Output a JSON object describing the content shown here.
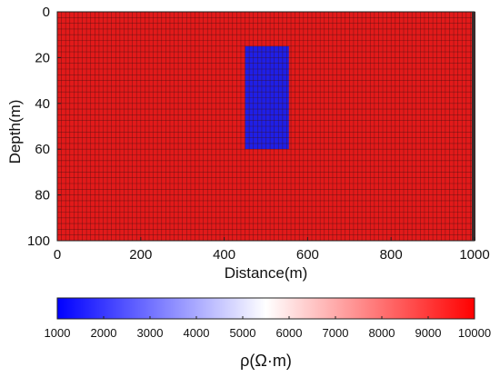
{
  "chart_data": {
    "type": "heatmap",
    "title": "",
    "xlabel": "Distance(m)",
    "ylabel": "Depth(m)",
    "xlim": [
      0,
      1000
    ],
    "ylim": [
      100,
      0
    ],
    "x_ticks": [
      0,
      200,
      400,
      600,
      800,
      1000
    ],
    "y_ticks": [
      0,
      20,
      40,
      60,
      80,
      100
    ],
    "grid": true,
    "y_axis_inverted": true,
    "mesh": {
      "x_cells": 100,
      "y_cells": 40
    },
    "background": {
      "resistivity": 10000,
      "color": "#e21a1a"
    },
    "anomaly": {
      "x_range": [
        450,
        555
      ],
      "z_range": [
        15,
        60
      ],
      "resistivity": 1000,
      "color": "#1f1fe6"
    },
    "colorbar": {
      "label": "ρ(Ω·m)",
      "min": 1000,
      "max": 10000,
      "ticks": [
        1000,
        2000,
        3000,
        4000,
        5000,
        6000,
        7000,
        8000,
        9000,
        10000
      ],
      "colors": [
        "#0000ff",
        "#ffffff",
        "#ff0000"
      ]
    }
  }
}
